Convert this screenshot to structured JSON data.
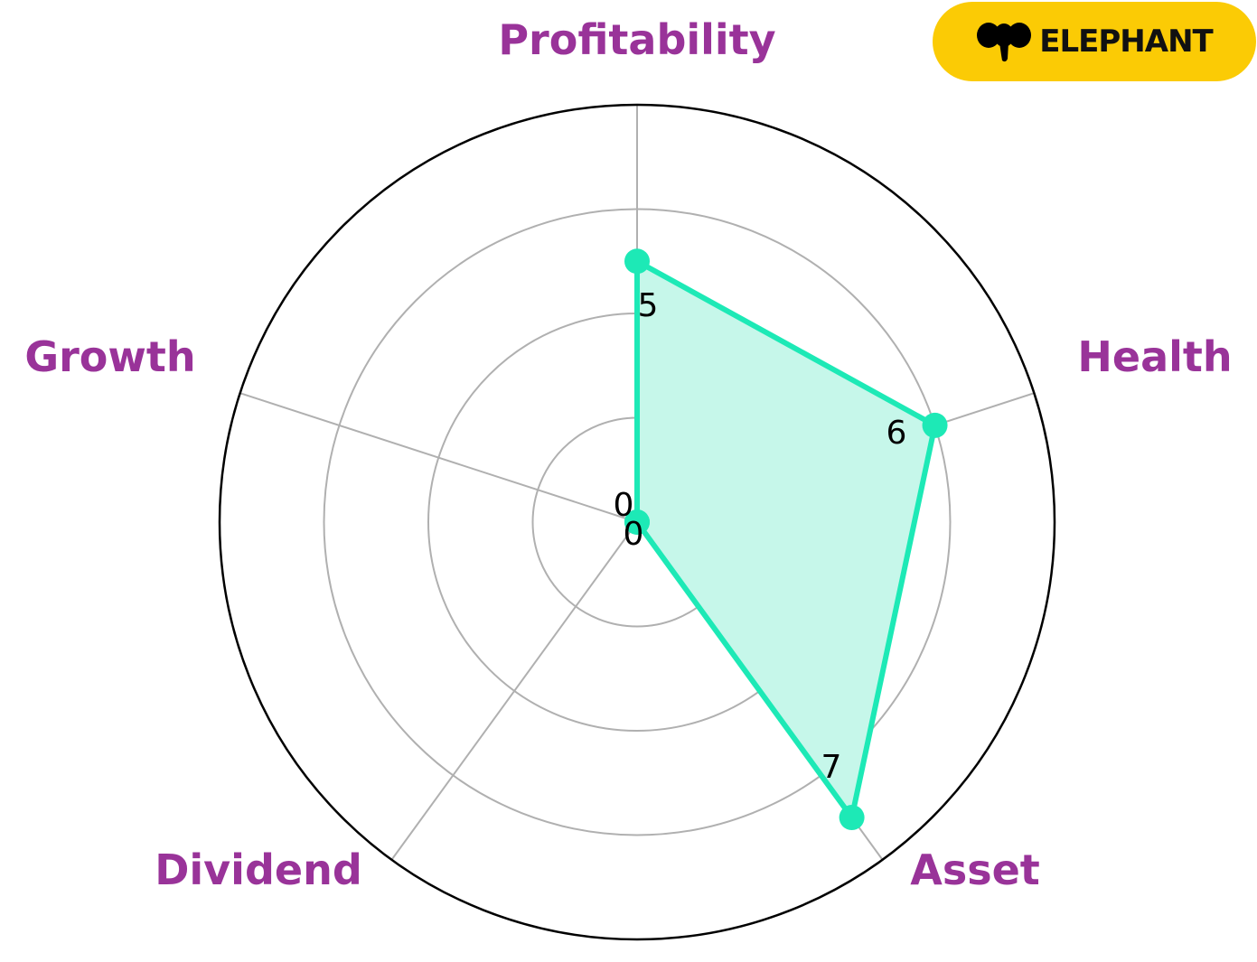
{
  "chart_data": {
    "type": "radar",
    "categories": [
      "Profitability",
      "Health",
      "Asset",
      "Dividend",
      "Growth"
    ],
    "values": [
      5,
      6,
      7,
      0,
      0
    ],
    "rlim": [
      0,
      8
    ],
    "rgrid": [
      2,
      4,
      6
    ],
    "grid": true,
    "colors": {
      "series": "#1de9b6",
      "fill": "#c6f7ea",
      "labels": "#993399",
      "grid": "#b0b0b0"
    }
  },
  "logo": {
    "text": "ELEPHANT",
    "background": "#fbcb05",
    "icon": "elephant-icon"
  }
}
